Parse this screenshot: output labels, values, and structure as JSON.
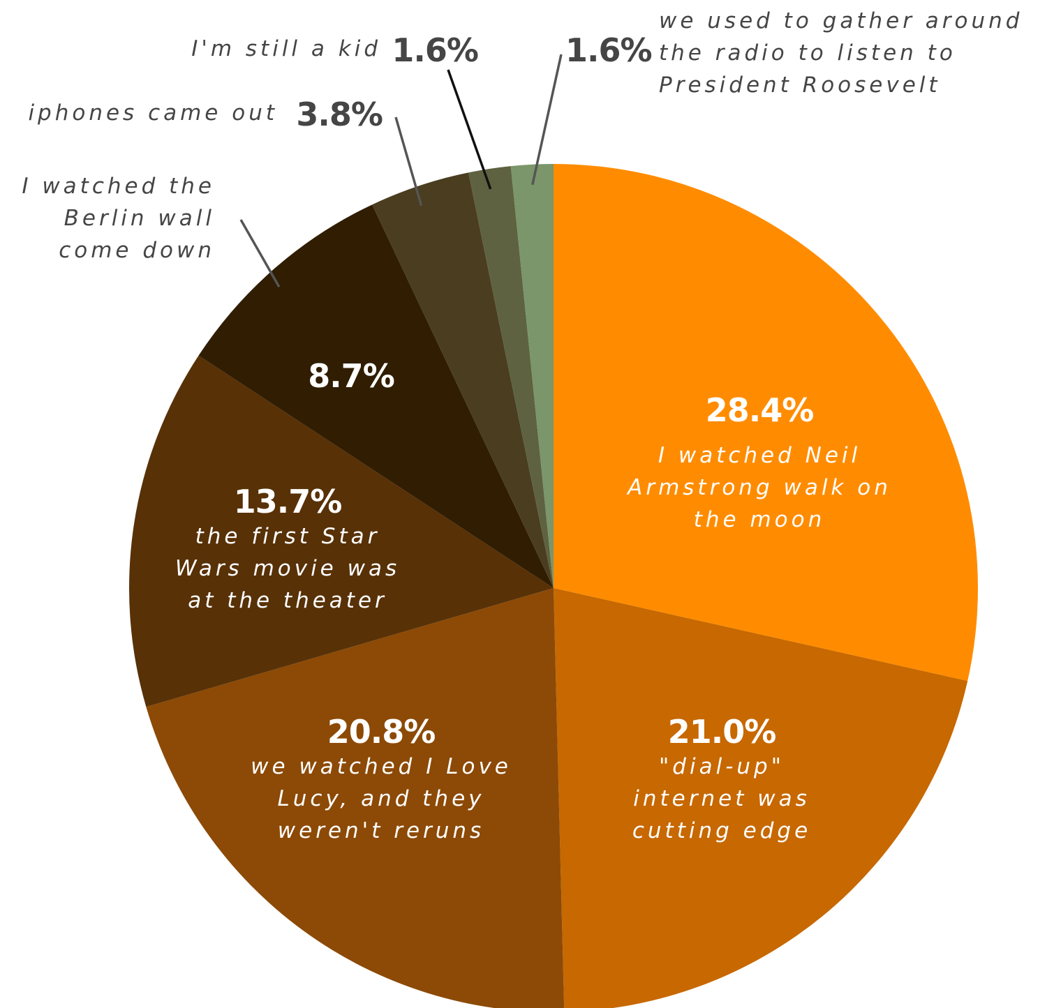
{
  "chart_data": {
    "type": "pie",
    "start": "top, clockwise",
    "slices": [
      {
        "value": 28.4,
        "value_label": "28.4%",
        "label_lines": [
          "I watched Neil",
          "Armstrong walk on",
          "the moon"
        ],
        "color": "#FF8C00",
        "label_position": "inside",
        "text_color": "#ffffff"
      },
      {
        "value": 21.0,
        "value_label": "21.0%",
        "label_lines": [
          "\"dial-up\"",
          "internet was",
          "cutting edge"
        ],
        "color": "#C76800",
        "label_position": "inside",
        "text_color": "#ffffff"
      },
      {
        "value": 20.8,
        "value_label": "20.8%",
        "label_lines": [
          "we watched I Love",
          "Lucy, and they",
          "weren't reruns"
        ],
        "color": "#8C4A06",
        "label_position": "inside",
        "text_color": "#ffffff"
      },
      {
        "value": 13.7,
        "value_label": "13.7%",
        "label_lines": [
          "the first Star",
          "Wars movie was",
          "at the theater"
        ],
        "color": "#583107",
        "label_position": "inside",
        "text_color": "#ffffff"
      },
      {
        "value": 8.7,
        "value_label": "8.7%",
        "label_lines": [
          "I watched the",
          "Berlin wall",
          "come down"
        ],
        "color": "#301D02",
        "label_position": "inside-value, outside-text",
        "text_color": "#ffffff"
      },
      {
        "value": 3.8,
        "value_label": "3.8%",
        "label_lines": [
          "iphones came out"
        ],
        "color": "#4A3D20",
        "label_position": "outside",
        "text_color": "#454545"
      },
      {
        "value": 1.6,
        "value_label": "1.6%",
        "label_lines": [
          "I'm still a kid"
        ],
        "color": "#5E6240",
        "label_position": "outside",
        "text_color": "#454545"
      },
      {
        "value": 1.6,
        "value_label": "1.6%",
        "label_lines": [
          "we used to gather around",
          "the radio to listen to",
          "President Roosevelt"
        ],
        "color": "#7B966A",
        "label_position": "outside",
        "text_color": "#454545"
      }
    ]
  }
}
